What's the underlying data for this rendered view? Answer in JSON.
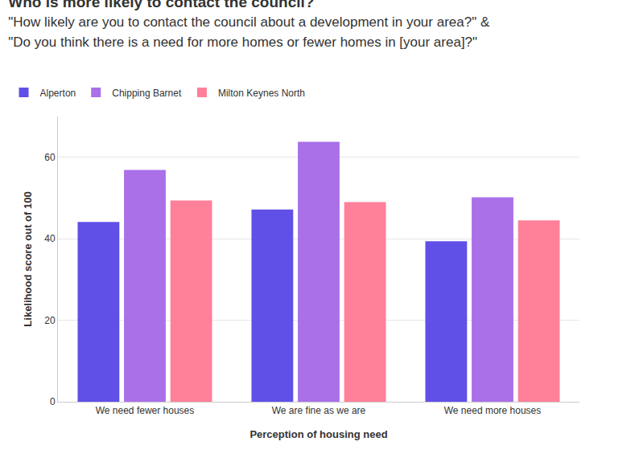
{
  "chart_data": {
    "type": "bar",
    "title": "Who is more likely to contact the council?",
    "subtitle": [
      "\"How likely are you to contact the council about a development in your area?\" &",
      "\"Do you think there is a need for more homes or fewer homes in [your area]?\""
    ],
    "x_label": "Perception of housing need",
    "y_label": "Likelihood score out of 100",
    "categories": [
      "We need fewer houses",
      "We are fine as we are",
      "We need more houses"
    ],
    "series": [
      {
        "name": "Alperton",
        "color": "#6050e8",
        "values": [
          44.1,
          47.2,
          39.4
        ]
      },
      {
        "name": "Chipping Barnet",
        "color": "#a970e8",
        "values": [
          56.9,
          63.8,
          50.2
        ]
      },
      {
        "name": "Milton Keynes North",
        "color": "#ff8099",
        "values": [
          49.4,
          49.0,
          44.5
        ]
      }
    ],
    "ylim": [
      0,
      70
    ],
    "yticks": [
      0,
      20,
      40,
      60
    ],
    "grid": true,
    "legend": "top-left"
  }
}
